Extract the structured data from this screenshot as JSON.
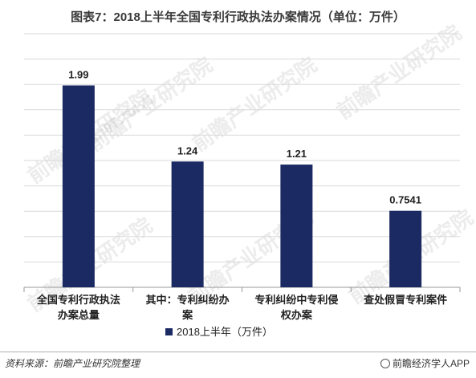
{
  "title": "图表7：2018上半年全国专利行政执法办案情况（单位：万件）",
  "chart_data": {
    "type": "bar",
    "categories": [
      "全国专利行政执法办案总量",
      "其中：专利纠纷办案",
      "专利纠纷中专利侵权办案",
      "查处假冒专利案件"
    ],
    "series": [
      {
        "name": "2018上半年（万件）",
        "values": [
          1.99,
          1.24,
          1.21,
          0.7541
        ]
      }
    ],
    "data_labels": [
      "1.99",
      "1.24",
      "1.21",
      "0.7541"
    ],
    "ylim": [
      0,
      2.5
    ],
    "grid": true,
    "legend_position": "bottom",
    "bar_color": "#1b2a63"
  },
  "legend_label": "2018上半年（万件）",
  "source": "资料来源：前瞻产业研究院整理",
  "brand": "前瞻经济学人APP",
  "watermark": "前瞻产业研究院"
}
